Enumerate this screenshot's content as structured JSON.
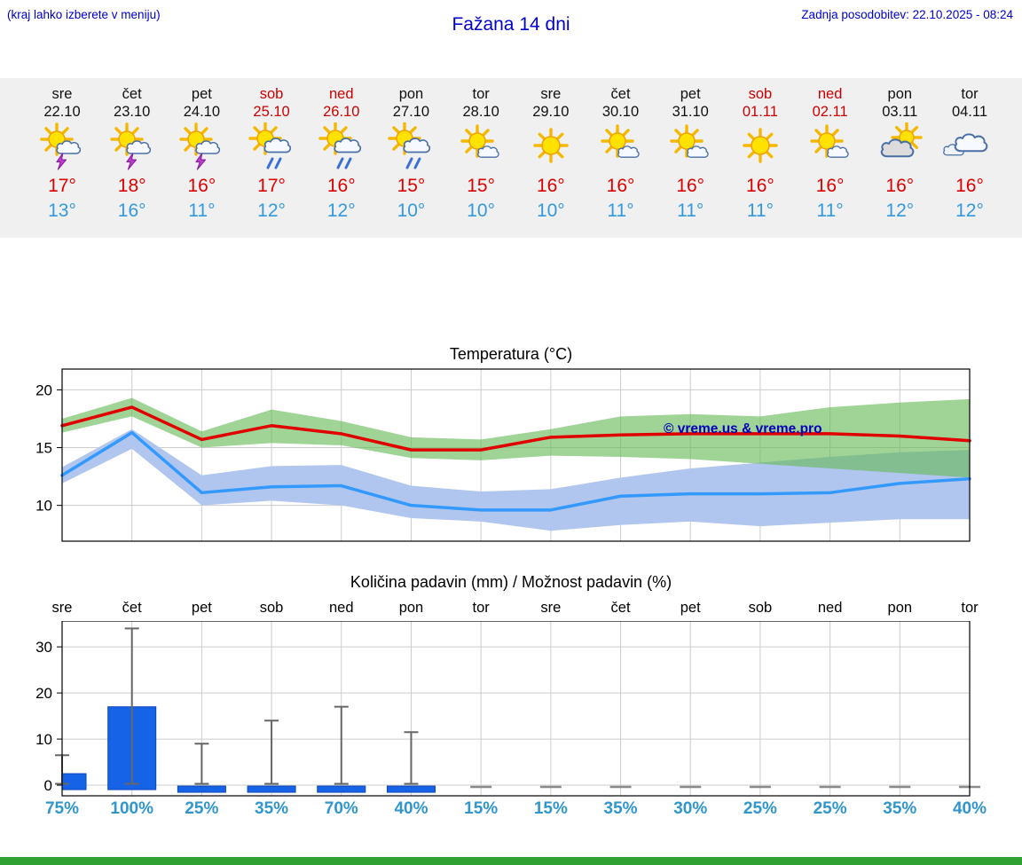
{
  "colors": {
    "accent_blue": "#0000cc",
    "high_temp": "#dd0000",
    "low_temp": "#3399dd",
    "weekend": "#cc0000",
    "probability": "#3096cc",
    "footer_green": "#2fa133"
  },
  "header": {
    "left_note": "(kraj lahko izberete v meniju)",
    "title": "Fažana 14 dni",
    "last_update": "Zadnja posodobitev: 22.10.2025 - 08:24"
  },
  "forecast": {
    "days": [
      {
        "name": "sre",
        "date": "22.10",
        "weekend": false,
        "icon": "sun-storm-icon",
        "high": "17°",
        "low": "13°"
      },
      {
        "name": "čet",
        "date": "23.10",
        "weekend": false,
        "icon": "sun-storm-icon",
        "high": "18°",
        "low": "16°"
      },
      {
        "name": "pet",
        "date": "24.10",
        "weekend": false,
        "icon": "sun-storm-icon",
        "high": "16°",
        "low": "11°"
      },
      {
        "name": "sob",
        "date": "25.10",
        "weekend": true,
        "icon": "sun-rain-icon",
        "high": "17°",
        "low": "12°"
      },
      {
        "name": "ned",
        "date": "26.10",
        "weekend": true,
        "icon": "sun-rain-icon",
        "high": "16°",
        "low": "12°"
      },
      {
        "name": "pon",
        "date": "27.10",
        "weekend": false,
        "icon": "sun-rain-icon",
        "high": "15°",
        "low": "10°"
      },
      {
        "name": "tor",
        "date": "28.10",
        "weekend": false,
        "icon": "sun-cloud-icon",
        "high": "15°",
        "low": "10°"
      },
      {
        "name": "sre",
        "date": "29.10",
        "weekend": false,
        "icon": "sun-icon",
        "high": "16°",
        "low": "10°"
      },
      {
        "name": "čet",
        "date": "30.10",
        "weekend": false,
        "icon": "sun-cloud-icon",
        "high": "16°",
        "low": "11°"
      },
      {
        "name": "pet",
        "date": "31.10",
        "weekend": false,
        "icon": "sun-cloud-icon",
        "high": "16°",
        "low": "11°"
      },
      {
        "name": "sob",
        "date": "01.11",
        "weekend": true,
        "icon": "sun-icon",
        "high": "16°",
        "low": "11°"
      },
      {
        "name": "ned",
        "date": "02.11",
        "weekend": true,
        "icon": "sun-cloud-icon",
        "high": "16°",
        "low": "11°"
      },
      {
        "name": "pon",
        "date": "03.11",
        "weekend": false,
        "icon": "sun-behind-cloud-icon",
        "high": "16°",
        "low": "12°"
      },
      {
        "name": "tor",
        "date": "04.11",
        "weekend": false,
        "icon": "cloudy-icon",
        "high": "16°",
        "low": "12°"
      }
    ]
  },
  "chart_data": [
    {
      "type": "line",
      "title": "Temperatura (°C)",
      "x_categories": [
        "sre",
        "čet",
        "pet",
        "sob",
        "ned",
        "pon",
        "tor",
        "sre",
        "čet",
        "pet",
        "sob",
        "ned",
        "pon",
        "tor"
      ],
      "ylim": [
        6.9,
        21.8
      ],
      "yticks": [
        10,
        15,
        20
      ],
      "grid": true,
      "legend_position": "none",
      "annotation": "© vreme.us & vreme.pro",
      "annotation_color": "#0000bb",
      "series": [
        {
          "name": "max temperature",
          "color": "#e00000",
          "values": [
            16.9,
            18.5,
            15.7,
            16.9,
            16.2,
            14.8,
            14.8,
            15.9,
            16.1,
            16.2,
            16.2,
            16.2,
            16.0,
            15.6
          ]
        },
        {
          "name": "min temperature",
          "color": "#3399ff",
          "values": [
            12.6,
            16.3,
            11.1,
            11.6,
            11.7,
            10.0,
            9.6,
            9.6,
            10.8,
            11.0,
            11.0,
            11.1,
            11.9,
            12.3
          ]
        }
      ],
      "bands": [
        {
          "name": "min temperature range",
          "color": "#b0c6ee",
          "opacity": 1,
          "upper": [
            13.3,
            16.6,
            12.6,
            13.4,
            13.5,
            11.7,
            11.2,
            11.4,
            12.4,
            13.2,
            13.7,
            14.2,
            14.6,
            14.8
          ],
          "lower": [
            11.9,
            14.9,
            10.0,
            10.4,
            10.0,
            8.9,
            8.6,
            7.8,
            8.3,
            8.6,
            8.2,
            8.5,
            8.8,
            8.8
          ]
        },
        {
          "name": "max temperature range",
          "color": "#66b956",
          "opacity": 0.62,
          "upper": [
            17.5,
            19.3,
            16.4,
            18.3,
            17.3,
            15.9,
            15.7,
            16.6,
            17.7,
            17.9,
            17.7,
            18.5,
            18.9,
            19.2
          ],
          "lower": [
            16.3,
            17.7,
            15.0,
            15.4,
            15.2,
            14.1,
            13.9,
            14.3,
            14.2,
            14.0,
            13.6,
            13.2,
            12.8,
            12.4
          ]
        }
      ]
    },
    {
      "type": "bar",
      "title": "Količina padavin (mm) / Možnost padavin (%)",
      "categories": [
        "sre",
        "čet",
        "pet",
        "sob",
        "ned",
        "pon",
        "tor",
        "sre",
        "čet",
        "pet",
        "sob",
        "ned",
        "pon",
        "tor"
      ],
      "ylim": [
        -2.3,
        35.6
      ],
      "yticks": [
        0,
        10,
        20,
        30
      ],
      "values": [
        2.5,
        17,
        0.7,
        0.4,
        0.3,
        0.3,
        0,
        0,
        0,
        0,
        0,
        0,
        0,
        0
      ],
      "whisker_high": [
        6.5,
        34,
        9,
        14,
        17,
        11.5,
        0,
        0,
        0,
        0,
        0,
        0,
        0,
        0
      ],
      "whisker_low": [
        0.3,
        0.3,
        0.3,
        0.3,
        0.3,
        0.3,
        0,
        0,
        0,
        0,
        0,
        0,
        0,
        0
      ],
      "probabilities": [
        "75%",
        "100%",
        "25%",
        "35%",
        "70%",
        "40%",
        "15%",
        "15%",
        "35%",
        "30%",
        "25%",
        "25%",
        "35%",
        "40%"
      ],
      "bar_color": "#1763e8",
      "whisker_color": "#666666"
    }
  ]
}
